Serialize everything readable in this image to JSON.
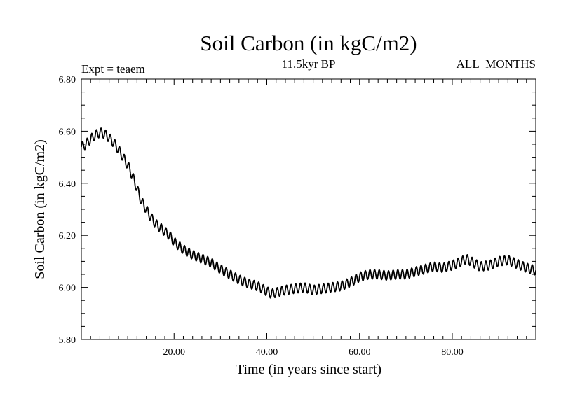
{
  "chart_data": {
    "type": "line",
    "title": "Soil Carbon (in kgC/m2)",
    "subtitle": "11.5kyr BP",
    "experiment": "Expt = teaem",
    "period": "ALL_MONTHS",
    "xlabel": "Time (in years since start)",
    "ylabel": "Soil Carbon (in kgC/m2)",
    "xlim": [
      0,
      98
    ],
    "ylim": [
      5.8,
      6.8
    ],
    "x_ticks": [
      20,
      40,
      60,
      80
    ],
    "x_tick_labels": [
      "20.00",
      "40.00",
      "60.00",
      "80.00"
    ],
    "y_ticks": [
      5.8,
      6.0,
      6.2,
      6.4,
      6.6,
      6.8
    ],
    "y_tick_labels": [
      "5.80",
      "6.00",
      "6.20",
      "6.40",
      "6.60",
      "6.80"
    ],
    "seasonal_amplitude": 0.018,
    "series": [
      {
        "name": "Soil Carbon",
        "color": "#000000",
        "x": [
          0,
          1,
          2,
          3,
          4,
          5,
          6,
          7,
          8,
          9,
          10,
          11,
          12,
          13,
          14,
          15,
          16,
          17,
          18,
          19,
          20,
          22,
          24,
          26,
          28,
          30,
          32,
          34,
          36,
          38,
          40,
          41,
          42,
          44,
          46,
          48,
          50,
          52,
          54,
          56,
          58,
          60,
          62,
          64,
          66,
          68,
          70,
          72,
          74,
          76,
          78,
          80,
          82,
          83,
          84,
          86,
          88,
          90,
          92,
          94,
          96,
          98
        ],
        "values": [
          6.54,
          6.55,
          6.57,
          6.585,
          6.595,
          6.59,
          6.575,
          6.555,
          6.53,
          6.5,
          6.47,
          6.43,
          6.38,
          6.33,
          6.3,
          6.27,
          6.245,
          6.23,
          6.215,
          6.2,
          6.175,
          6.145,
          6.125,
          6.11,
          6.095,
          6.07,
          6.05,
          6.03,
          6.015,
          6.005,
          5.985,
          5.975,
          5.98,
          5.99,
          5.995,
          6.0,
          5.99,
          5.995,
          6.0,
          6.005,
          6.02,
          6.04,
          6.05,
          6.05,
          6.045,
          6.05,
          6.05,
          6.06,
          6.07,
          6.08,
          6.075,
          6.085,
          6.1,
          6.11,
          6.1,
          6.08,
          6.085,
          6.1,
          6.105,
          6.09,
          6.075,
          6.065
        ]
      }
    ]
  }
}
